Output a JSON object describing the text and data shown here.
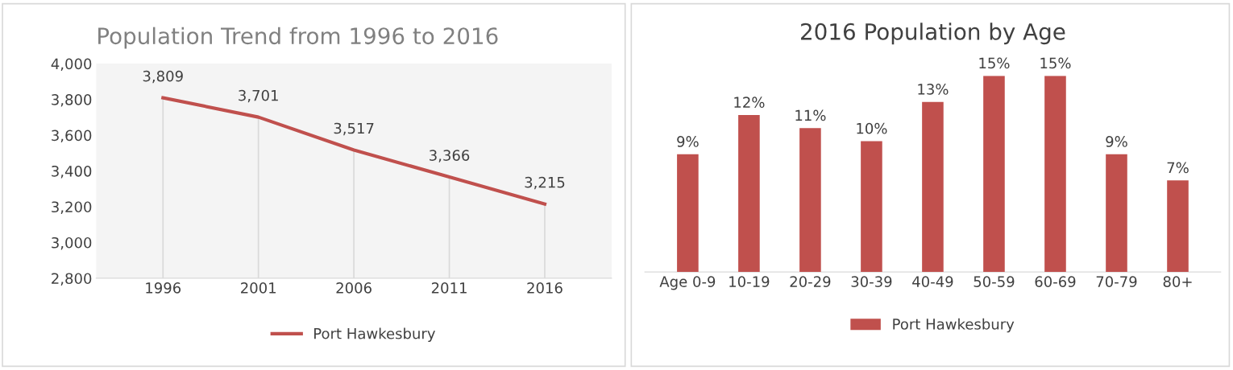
{
  "chart_data": [
    {
      "type": "line",
      "title": "Population Trend from 1996 to 2016",
      "categories": [
        "1996",
        "2001",
        "2006",
        "2011",
        "2016"
      ],
      "series": [
        {
          "name": "Port Hawkesbury",
          "color": "#c0504d",
          "values": [
            3809,
            3701,
            3517,
            3366,
            3215
          ],
          "value_labels": [
            "3,809",
            "3,701",
            "3,517",
            "3,366",
            "3,215"
          ]
        }
      ],
      "ylim": [
        2800,
        4000
      ],
      "yticks": [
        {
          "value": 2800,
          "label": "2,800"
        },
        {
          "value": 3000,
          "label": "3,000"
        },
        {
          "value": 3200,
          "label": "3,200"
        },
        {
          "value": 3400,
          "label": "3,400"
        },
        {
          "value": 3600,
          "label": "3,600"
        },
        {
          "value": 3800,
          "label": "3,800"
        },
        {
          "value": 4000,
          "label": "4,000"
        }
      ],
      "grid": "x",
      "legend": "bottom",
      "marker": "none",
      "line_style": "solid"
    },
    {
      "type": "bar",
      "title": "2016 Population by Age",
      "categories": [
        "Age 0-9",
        "10-19",
        "20-29",
        "30-39",
        "40-49",
        "50-59",
        "60-69",
        "70-79",
        "80+"
      ],
      "series": [
        {
          "name": "Port Hawkesbury",
          "color": "#c0504d",
          "values": [
            9,
            12,
            11,
            10,
            13,
            15,
            15,
            9,
            7
          ],
          "value_labels": [
            "9%",
            "12%",
            "11%",
            "10%",
            "13%",
            "15%",
            "15%",
            "9%",
            "7%"
          ]
        }
      ],
      "tick_labels": "x",
      "grid": false,
      "legend": "bottom"
    }
  ]
}
